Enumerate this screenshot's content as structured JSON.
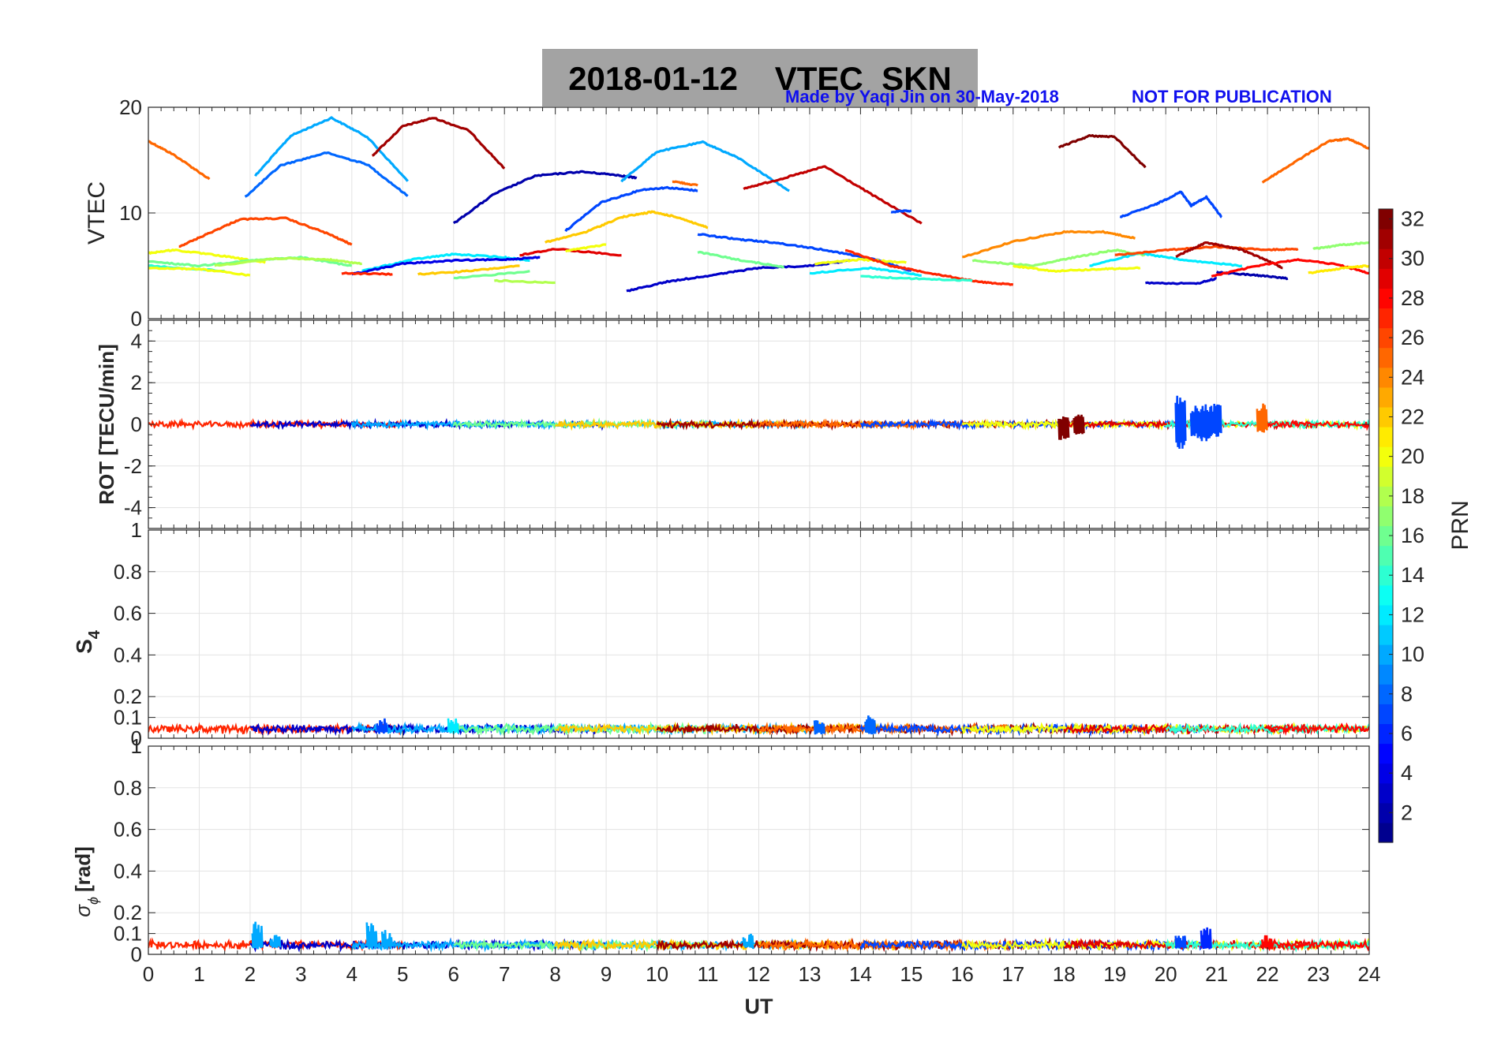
{
  "header": {
    "date": "2018-01-12",
    "product": "VTEC",
    "station": "SKN",
    "credit": "Made by Yaqi Jin on 30-May-2018",
    "notice": "NOT FOR PUBLICATION"
  },
  "colors": {
    "title_box": "#a3a3a3",
    "credit_text": "#1010ee",
    "colormap": [
      "#00008f",
      "#0000ff",
      "#0080ff",
      "#00ffff",
      "#80ff80",
      "#ffff00",
      "#ff8000",
      "#ff0000",
      "#800000"
    ]
  },
  "chart_data": [
    {
      "type": "line",
      "panel": "vtec",
      "ylabel": "VTEC",
      "xlim": [
        0,
        24
      ],
      "ylim": [
        0,
        20
      ],
      "yticks": [
        0,
        10,
        20
      ],
      "grid": true,
      "series": [
        {
          "prn": 25,
          "x": [
            0,
            0.5,
            1.2
          ],
          "y": [
            16.8,
            15.5,
            13.2
          ]
        },
        {
          "prn": 10,
          "x": [
            2.1,
            2.8,
            3.6,
            4.3,
            5.1
          ],
          "y": [
            13.5,
            17.3,
            19.0,
            17.2,
            13.0
          ]
        },
        {
          "prn": 8,
          "x": [
            1.9,
            2.6,
            3.5,
            4.3,
            5.1
          ],
          "y": [
            11.5,
            14.5,
            15.7,
            14.6,
            11.6
          ]
        },
        {
          "prn": 31,
          "x": [
            4.4,
            5.0,
            5.6,
            6.3,
            7.0
          ],
          "y": [
            15.4,
            18.2,
            19.0,
            17.8,
            14.2
          ]
        },
        {
          "prn": 2,
          "x": [
            6.0,
            6.8,
            7.6,
            8.5,
            9.2,
            9.6
          ],
          "y": [
            9.0,
            11.8,
            13.5,
            13.9,
            13.6,
            13.3
          ]
        },
        {
          "prn": 10,
          "x": [
            9.3,
            10.0,
            10.9,
            11.6,
            12.6
          ],
          "y": [
            13.0,
            15.8,
            16.7,
            15.2,
            12.1
          ]
        },
        {
          "prn": 7,
          "x": [
            8.2,
            8.9,
            9.7,
            10.2,
            10.8
          ],
          "y": [
            8.3,
            11.0,
            12.2,
            12.4,
            12.1
          ]
        },
        {
          "prn": 25,
          "x": [
            10.3,
            10.8
          ],
          "y": [
            13.0,
            12.6
          ]
        },
        {
          "prn": 30,
          "x": [
            11.7,
            12.5,
            13.3,
            14.2,
            15.2
          ],
          "y": [
            12.3,
            13.3,
            14.4,
            11.8,
            9.0
          ]
        },
        {
          "prn": 7,
          "x": [
            14.6,
            15.0
          ],
          "y": [
            10.1,
            10.2
          ]
        },
        {
          "prn": 32,
          "x": [
            17.9,
            18.5,
            19.0,
            19.6
          ],
          "y": [
            16.2,
            17.3,
            17.2,
            14.3
          ]
        },
        {
          "prn": 7,
          "x": [
            19.1,
            19.8,
            20.3,
            20.5,
            20.8,
            21.1
          ],
          "y": [
            9.6,
            10.8,
            12.0,
            10.7,
            11.5,
            9.6
          ]
        },
        {
          "prn": 25,
          "x": [
            21.9,
            22.4,
            23.2,
            23.6,
            24.0
          ],
          "y": [
            12.9,
            14.4,
            16.8,
            17.0,
            16.1
          ]
        },
        {
          "prn": 26,
          "x": [
            0.6,
            1.2,
            1.8,
            2.7,
            3.5,
            4.0
          ],
          "y": [
            6.8,
            8.1,
            9.4,
            9.5,
            8.1,
            7.0
          ]
        },
        {
          "prn": 20,
          "x": [
            0,
            0.5,
            1.5,
            2.3
          ],
          "y": [
            6.2,
            6.5,
            5.9,
            5.3
          ]
        },
        {
          "prn": 16,
          "x": [
            0,
            1.0,
            2.0,
            3.0,
            4.0
          ],
          "y": [
            5.4,
            5.0,
            5.5,
            5.8,
            5.0
          ]
        },
        {
          "prn": 14,
          "x": [
            0,
            1.5
          ],
          "y": [
            5.0,
            4.5
          ]
        },
        {
          "prn": 20,
          "x": [
            0,
            1.0,
            2.0
          ],
          "y": [
            4.8,
            4.7,
            4.1
          ]
        },
        {
          "prn": 18,
          "x": [
            1.3,
            2.5,
            3.5,
            4.2
          ],
          "y": [
            5.0,
            5.7,
            5.6,
            5.2
          ]
        },
        {
          "prn": 12,
          "x": [
            4.2,
            5.2,
            6.0,
            7.0,
            7.5
          ],
          "y": [
            4.5,
            5.6,
            6.1,
            5.8,
            5.5
          ]
        },
        {
          "prn": 4,
          "x": [
            4.0,
            5.0,
            6.0,
            7.0,
            7.7
          ],
          "y": [
            4.2,
            5.2,
            5.5,
            5.6,
            5.8
          ]
        },
        {
          "prn": 27,
          "x": [
            3.8,
            4.8
          ],
          "y": [
            4.3,
            4.2
          ]
        },
        {
          "prn": 22,
          "x": [
            5.3,
            6.3,
            7.3
          ],
          "y": [
            4.2,
            4.5,
            5.0
          ]
        },
        {
          "prn": 16,
          "x": [
            6.0,
            7.5
          ],
          "y": [
            3.8,
            4.5
          ]
        },
        {
          "prn": 18,
          "x": [
            6.8,
            8.0
          ],
          "y": [
            3.6,
            3.4
          ]
        },
        {
          "prn": 29,
          "x": [
            7.3,
            8.0,
            9.3
          ],
          "y": [
            6.0,
            6.6,
            6.0
          ]
        },
        {
          "prn": 22,
          "x": [
            7.8,
            8.6,
            9.3,
            9.9,
            10.4,
            11.0
          ],
          "y": [
            7.2,
            8.2,
            9.6,
            10.1,
            9.6,
            8.6
          ]
        },
        {
          "prn": 20,
          "x": [
            8.2,
            9.0
          ],
          "y": [
            6.4,
            7.0
          ]
        },
        {
          "prn": 3,
          "x": [
            9.4,
            10.2,
            11.2,
            12.0,
            13.0,
            13.8
          ],
          "y": [
            2.6,
            3.5,
            4.2,
            4.8,
            5.0,
            5.5
          ]
        },
        {
          "prn": 7,
          "x": [
            10.8,
            11.6,
            12.3,
            13.3,
            14.3,
            15.0
          ],
          "y": [
            8.0,
            7.5,
            7.2,
            6.5,
            5.6,
            4.5
          ]
        },
        {
          "prn": 16,
          "x": [
            10.8,
            11.8,
            12.5
          ],
          "y": [
            6.3,
            5.4,
            4.9
          ]
        },
        {
          "prn": 20,
          "x": [
            13.1,
            14.0,
            14.9
          ],
          "y": [
            5.2,
            5.6,
            5.3
          ]
        },
        {
          "prn": 12,
          "x": [
            13.0,
            14.2,
            15.2
          ],
          "y": [
            4.3,
            4.8,
            4.1
          ]
        },
        {
          "prn": 27,
          "x": [
            13.7,
            14.6,
            15.5,
            16.3,
            17.0
          ],
          "y": [
            6.5,
            5.0,
            4.2,
            3.5,
            3.2
          ]
        },
        {
          "prn": 14,
          "x": [
            14.0,
            15.0,
            16.2
          ],
          "y": [
            4.0,
            3.8,
            3.6
          ]
        },
        {
          "prn": 24,
          "x": [
            16.0,
            17.0,
            18.0,
            18.8,
            19.4
          ],
          "y": [
            5.8,
            7.3,
            8.2,
            8.2,
            7.6
          ]
        },
        {
          "prn": 17,
          "x": [
            16.2,
            17.4,
            18.2,
            19.0,
            19.6
          ],
          "y": [
            5.5,
            5.0,
            5.8,
            6.5,
            6.0
          ]
        },
        {
          "prn": 20,
          "x": [
            17.0,
            17.8,
            18.8,
            19.5
          ],
          "y": [
            5.0,
            4.5,
            4.7,
            4.8
          ]
        },
        {
          "prn": 12,
          "x": [
            18.5,
            19.5,
            20.4,
            21.5
          ],
          "y": [
            5.0,
            6.2,
            5.5,
            5.0
          ]
        },
        {
          "prn": 26,
          "x": [
            19.0,
            20.0,
            21.0,
            22.0,
            22.6
          ],
          "y": [
            6.0,
            6.5,
            6.8,
            6.5,
            6.6
          ]
        },
        {
          "prn": 3,
          "x": [
            19.6,
            20.6,
            21.0
          ],
          "y": [
            3.4,
            3.3,
            3.8
          ]
        },
        {
          "prn": 31,
          "x": [
            20.2,
            20.8,
            21.5,
            22.0,
            22.3
          ],
          "y": [
            5.9,
            7.2,
            6.5,
            5.5,
            4.8
          ]
        },
        {
          "prn": 2,
          "x": [
            21.0,
            21.8,
            22.4
          ],
          "y": [
            4.4,
            4.1,
            3.8
          ]
        },
        {
          "prn": 28,
          "x": [
            20.9,
            21.8,
            22.6,
            23.4,
            24.0
          ],
          "y": [
            4.0,
            5.0,
            5.6,
            5.1,
            4.3
          ]
        },
        {
          "prn": 17,
          "x": [
            22.9,
            23.5,
            24.0
          ],
          "y": [
            6.6,
            7.0,
            7.2
          ]
        },
        {
          "prn": 21,
          "x": [
            22.8,
            23.5,
            24.0
          ],
          "y": [
            4.3,
            4.8,
            5.0
          ]
        }
      ]
    },
    {
      "type": "line",
      "panel": "rot",
      "ylabel": "ROT [TECU/min]",
      "xlim": [
        0,
        24
      ],
      "ylim": [
        -5,
        5
      ],
      "yticks": [
        -4,
        -2,
        0,
        2,
        4
      ],
      "grid": true,
      "baseline": 0,
      "noise_amplitude": 0.15,
      "spikes": [
        {
          "prn": 32,
          "x": 18.0,
          "ymin": -0.8,
          "ymax": 0.4
        },
        {
          "prn": 32,
          "x": 18.3,
          "ymin": -0.5,
          "ymax": 0.5
        },
        {
          "prn": 7,
          "x": 20.3,
          "ymin": -1.2,
          "ymax": 1.4
        },
        {
          "prn": 7,
          "x": 20.6,
          "ymin": -0.7,
          "ymax": 0.9
        },
        {
          "prn": 7,
          "x": 20.8,
          "ymin": -0.9,
          "ymax": 1.0
        },
        {
          "prn": 7,
          "x": 21.0,
          "ymin": -0.6,
          "ymax": 1.0
        },
        {
          "prn": 25,
          "x": 21.9,
          "ymin": -0.4,
          "ymax": 1.0
        }
      ]
    },
    {
      "type": "line",
      "panel": "s4",
      "ylabel": "S4",
      "xlim": [
        0,
        24
      ],
      "ylim": [
        0,
        1
      ],
      "yticks": [
        0,
        0.1,
        0.2,
        0.4,
        0.6,
        0.8,
        1
      ],
      "grid": true,
      "baseline": 0.045,
      "noise_amplitude": 0.02,
      "spikes": [
        {
          "prn": 7,
          "x": 4.6,
          "ymin": 0.03,
          "ymax": 0.1
        },
        {
          "prn": 12,
          "x": 6.0,
          "ymin": 0.03,
          "ymax": 0.1
        },
        {
          "prn": 8,
          "x": 13.2,
          "ymin": 0.03,
          "ymax": 0.1
        },
        {
          "prn": 8,
          "x": 14.2,
          "ymin": 0.03,
          "ymax": 0.11
        }
      ]
    },
    {
      "type": "line",
      "panel": "sigma_phi",
      "ylabel": "σ_ϕ [rad]",
      "xlabel": "UT",
      "xlim": [
        0,
        24
      ],
      "ylim": [
        0,
        1
      ],
      "xticks": [
        0,
        1,
        2,
        3,
        4,
        5,
        6,
        7,
        8,
        9,
        10,
        11,
        12,
        13,
        14,
        15,
        16,
        17,
        18,
        19,
        20,
        21,
        22,
        23,
        24
      ],
      "yticks": [
        0,
        0.1,
        0.2,
        0.4,
        0.6,
        0.8,
        1
      ],
      "grid": true,
      "baseline": 0.045,
      "noise_amplitude": 0.02,
      "spikes": [
        {
          "prn": 10,
          "x": 2.15,
          "ymin": 0.04,
          "ymax": 0.16
        },
        {
          "prn": 10,
          "x": 2.5,
          "ymin": 0.04,
          "ymax": 0.1
        },
        {
          "prn": 10,
          "x": 4.4,
          "ymin": 0.04,
          "ymax": 0.16
        },
        {
          "prn": 10,
          "x": 4.7,
          "ymin": 0.04,
          "ymax": 0.12
        },
        {
          "prn": 10,
          "x": 11.8,
          "ymin": 0.04,
          "ymax": 0.1
        },
        {
          "prn": 7,
          "x": 20.3,
          "ymin": 0.04,
          "ymax": 0.1
        },
        {
          "prn": 6,
          "x": 20.8,
          "ymin": 0.04,
          "ymax": 0.14
        },
        {
          "prn": 28,
          "x": 22.0,
          "ymin": 0.04,
          "ymax": 0.1
        }
      ]
    },
    {
      "type": "heatmap",
      "panel": "colorbar",
      "label": "PRN",
      "range": [
        1,
        32
      ],
      "ticks": [
        2,
        4,
        6,
        8,
        10,
        12,
        14,
        16,
        18,
        20,
        22,
        24,
        26,
        28,
        30,
        32
      ]
    }
  ]
}
